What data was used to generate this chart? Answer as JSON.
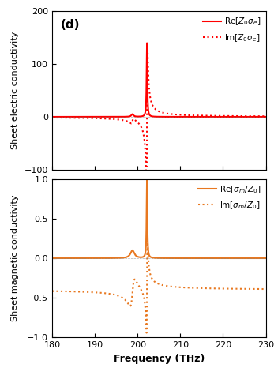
{
  "freq_min": 180,
  "freq_max": 230,
  "freq_points": 10000,
  "electric_ylim": [
    -100,
    200
  ],
  "magnetic_ylim": [
    -1.0,
    1.0
  ],
  "electric_yticks": [
    -100,
    0,
    100,
    200
  ],
  "magnetic_yticks": [
    -1.0,
    -0.5,
    0.0,
    0.5,
    1.0
  ],
  "xticks": [
    180,
    190,
    200,
    210,
    220,
    230
  ],
  "red_color": "#ff0000",
  "orange_color": "#e87820",
  "panel_label": "(d)",
  "elec_ylabel": "Sheet electric conductivity",
  "mag_ylabel": "Sheet magnetic conductivity",
  "xlabel": "Frequency (THz)",
  "res1_freq": 198.8,
  "res2_freq": 202.2,
  "res1_gamma_e": 0.3,
  "res2_gamma_e": 0.1,
  "res1_amp_e": 5.0,
  "res2_amp_e": 140.0,
  "res1_freq_m": 198.8,
  "res2_freq_m": 202.2,
  "res1_gamma_m": 0.55,
  "res2_gamma_m": 0.1,
  "res1_amp_m": 0.1,
  "res2_amp_m": 1.0,
  "mag_imag_bg": -0.4,
  "mag_imag_amp1": 0.35,
  "mag_imag_amp2": 1.2
}
